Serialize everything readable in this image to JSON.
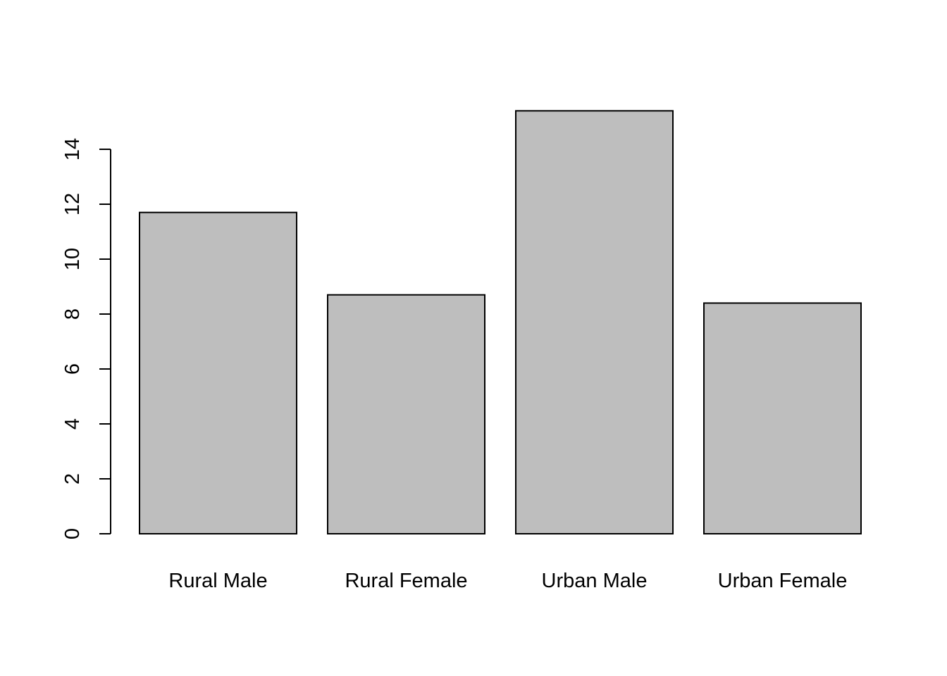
{
  "chart_data": {
    "type": "bar",
    "categories": [
      "Rural Male",
      "Rural Female",
      "Urban Male",
      "Urban Female"
    ],
    "values": [
      11.7,
      8.7,
      15.4,
      8.4
    ],
    "title": "",
    "xlabel": "",
    "ylabel": "",
    "ylim": [
      0,
      15.4
    ],
    "yticks": [
      "0",
      "2",
      "4",
      "6",
      "8",
      "10",
      "12",
      "14"
    ],
    "grid": false,
    "legend": "none",
    "colors": {
      "bar_fill": "#bebebe",
      "bar_stroke": "#000000",
      "background": "#ffffff"
    }
  }
}
